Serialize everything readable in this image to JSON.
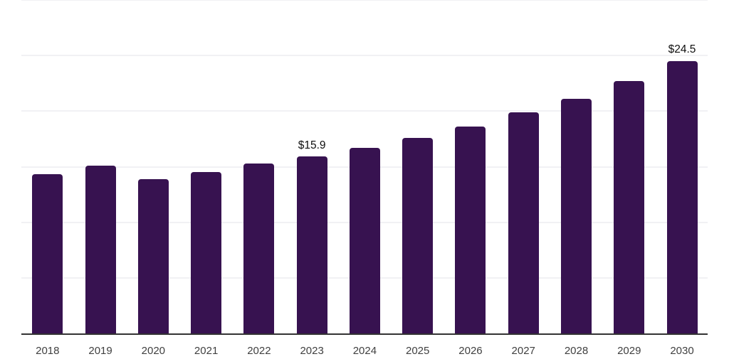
{
  "chart_data": {
    "type": "bar",
    "title": "",
    "xlabel": "",
    "ylabel": "",
    "categories": [
      "2018",
      "2019",
      "2020",
      "2021",
      "2022",
      "2023",
      "2024",
      "2025",
      "2026",
      "2027",
      "2028",
      "2029",
      "2030"
    ],
    "values": [
      14.3,
      15.1,
      13.9,
      14.5,
      15.3,
      15.9,
      16.7,
      17.6,
      18.6,
      19.9,
      21.1,
      22.7,
      24.5
    ],
    "data_labels": [
      {
        "category": "2023",
        "text": "$15.9"
      },
      {
        "category": "2030",
        "text": "$24.5"
      }
    ],
    "ylim": [
      0,
      30
    ],
    "grid_step": 5,
    "grid": "horizontal",
    "legend": "none",
    "colors": {
      "bar": "#371250",
      "axis_line": "#333333",
      "gridline": "#F1F1F4",
      "tick_label": "#404040",
      "data_label": "#0E0E0E",
      "background": "#FFFFFF"
    }
  }
}
